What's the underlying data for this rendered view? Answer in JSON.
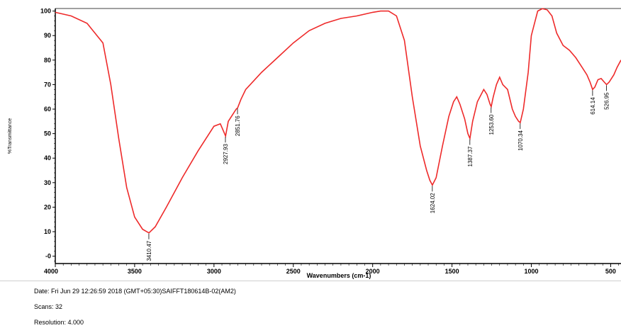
{
  "chart_data": {
    "type": "line",
    "xlabel": "Wavenumbers (cm-1)",
    "ylabel": "%Transmittance",
    "xlim": [
      4000,
      435
    ],
    "ylim": [
      -3,
      101
    ],
    "x_ticks": [
      4000,
      3500,
      3000,
      2500,
      2000,
      1500,
      1000,
      500
    ],
    "x_tick_labels": [
      "4000",
      "3500",
      "3000",
      "2500",
      "2000",
      "1500",
      "1000",
      "500"
    ],
    "y_ticks": [
      0,
      10,
      20,
      30,
      40,
      50,
      60,
      70,
      80,
      90,
      100
    ],
    "y_tick_labels": [
      "-0",
      "10",
      "20",
      "30",
      "40",
      "50",
      "60",
      "70",
      "80",
      "90",
      "100"
    ],
    "line_color": "#ee2a2a",
    "grid": false,
    "series": [
      {
        "x": [
          4000,
          3900,
          3800,
          3700,
          3650,
          3600,
          3550,
          3500,
          3450,
          3410,
          3370,
          3300,
          3200,
          3100,
          3000,
          2960,
          2940,
          2927,
          2910,
          2880,
          2860,
          2851,
          2830,
          2800,
          2700,
          2600,
          2500,
          2400,
          2300,
          2200,
          2100,
          2000,
          1950,
          1900,
          1850,
          1800,
          1750,
          1700,
          1660,
          1640,
          1624,
          1600,
          1560,
          1520,
          1490,
          1470,
          1450,
          1420,
          1400,
          1387,
          1370,
          1340,
          1300,
          1280,
          1260,
          1253,
          1240,
          1220,
          1200,
          1180,
          1150,
          1120,
          1100,
          1080,
          1070,
          1050,
          1020,
          1000,
          960,
          930,
          900,
          870,
          840,
          800,
          760,
          720,
          680,
          650,
          630,
          614,
          600,
          580,
          560,
          540,
          526,
          510,
          480,
          460,
          435
        ],
        "y": [
          99.5,
          98,
          95,
          87,
          70,
          48,
          28,
          16,
          11,
          9.5,
          12,
          20,
          32,
          43,
          53,
          54,
          51,
          49,
          55,
          58,
          60,
          60.5,
          64,
          68,
          75,
          81,
          87,
          92,
          95,
          97,
          98,
          99.5,
          100,
          100,
          98,
          88,
          65,
          45,
          35,
          31,
          29,
          32,
          45,
          57,
          63,
          65,
          62,
          56,
          50,
          48,
          55,
          63,
          68,
          66,
          62,
          61,
          65,
          70,
          73,
          70,
          68,
          60,
          57,
          55,
          54.5,
          60,
          75,
          90,
          100,
          101,
          100.5,
          98,
          91,
          86,
          84,
          81,
          77,
          74,
          71,
          68,
          69,
          72,
          72.5,
          71,
          70,
          71,
          74,
          77,
          80
        ]
      }
    ],
    "peak_labels": [
      {
        "x": 3410.47,
        "y": 9.5,
        "label": "3410.47"
      },
      {
        "x": 2927.93,
        "y": 49,
        "label": "2927.93"
      },
      {
        "x": 2851.76,
        "y": 60.5,
        "label": "2851.76"
      },
      {
        "x": 1624.02,
        "y": 29,
        "label": "1624.02"
      },
      {
        "x": 1387.37,
        "y": 48,
        "label": "1387.37"
      },
      {
        "x": 1253.6,
        "y": 61,
        "label": "1253.60"
      },
      {
        "x": 1070.34,
        "y": 54.5,
        "label": "1070.34"
      },
      {
        "x": 614.14,
        "y": 68,
        "label": "614.14"
      },
      {
        "x": 526.95,
        "y": 70,
        "label": "526.95"
      }
    ]
  },
  "info": {
    "date": "Date: Fri Jun 29 12:26:59 2018 (GMT+05:30)SAIFFT180614B-02(AM2)",
    "scans": "Scans: 32",
    "resolution": "Resolution:  4.000"
  }
}
